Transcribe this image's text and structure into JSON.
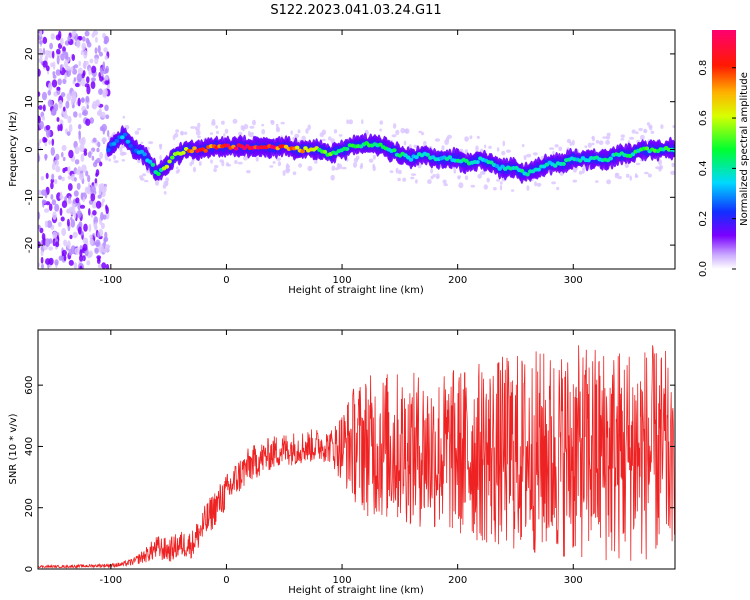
{
  "title": "S122.2023.041.03.24.G11",
  "colors": {
    "snr_line": "#ee2222",
    "scatter_dots": "#7a00ff",
    "axis": "#000000"
  },
  "chart_data": [
    {
      "type": "heatmap",
      "title": "S122.2023.041.03.24.G11",
      "xlabel": "Height of straight line (km)",
      "ylabel": "Frequency (Hz)",
      "xlim": [
        -163,
        388
      ],
      "ylim": [
        -25,
        25
      ],
      "xticks": [
        -100,
        0,
        100,
        200,
        300
      ],
      "xtick_labels": [
        "-100",
        "0",
        "100",
        "200",
        "300"
      ],
      "yticks": [
        -20,
        -10,
        0,
        10,
        20
      ],
      "ytick_labels": [
        "-20",
        "-10",
        "0",
        "10",
        "20"
      ],
      "colorbar": {
        "label": "Normalized spectral amplitude",
        "range": [
          0,
          0.95
        ],
        "ticks": [
          0.0,
          0.2,
          0.4,
          0.6,
          0.8
        ],
        "tick_labels": [
          "0.0",
          "0.2",
          "0.4",
          "0.6",
          "0.8"
        ],
        "colormap": "rainbow (white-violet-blue-cyan-green-yellow-red-magenta)"
      },
      "noise_region_x": [
        -163,
        -102
      ],
      "ridge": {
        "x": [
          -102,
          -95,
          -88,
          -80,
          -72,
          -65,
          -60,
          -55,
          -50,
          -45,
          -40,
          -35,
          -30,
          -20,
          -10,
          0,
          10,
          20,
          30,
          40,
          50,
          60,
          70,
          80,
          90,
          100,
          110,
          120,
          130,
          140,
          150,
          160,
          170,
          180,
          190,
          200,
          210,
          220,
          230,
          240,
          250,
          260,
          270,
          280,
          290,
          300,
          310,
          320,
          330,
          340,
          350,
          360,
          370,
          380,
          388
        ],
        "freq": [
          0,
          2,
          3,
          0,
          -1,
          -3,
          -5,
          -4,
          -3,
          -1,
          -1,
          0,
          0,
          0,
          0.5,
          0.5,
          0.5,
          0.5,
          0.5,
          0.5,
          0.5,
          0,
          0,
          0,
          -1,
          0,
          1,
          1,
          1,
          0,
          -1,
          -2,
          -1,
          -2,
          -2,
          -2,
          -3,
          -2,
          -3,
          -4,
          -4,
          -5,
          -4,
          -3,
          -3,
          -2,
          -2,
          -2,
          -2,
          -1,
          -1,
          0,
          0,
          0,
          0
        ],
        "amplitude": [
          0.3,
          0.35,
          0.35,
          0.3,
          0.35,
          0.45,
          0.5,
          0.55,
          0.6,
          0.7,
          0.75,
          0.8,
          0.85,
          0.9,
          0.9,
          0.9,
          0.95,
          0.95,
          0.95,
          0.9,
          0.9,
          0.8,
          0.7,
          0.6,
          0.55,
          0.55,
          0.5,
          0.5,
          0.5,
          0.45,
          0.45,
          0.4,
          0.4,
          0.4,
          0.4,
          0.45,
          0.45,
          0.4,
          0.4,
          0.4,
          0.45,
          0.4,
          0.4,
          0.4,
          0.4,
          0.4,
          0.4,
          0.45,
          0.45,
          0.45,
          0.45,
          0.5,
          0.5,
          0.5,
          0.5
        ]
      }
    },
    {
      "type": "line",
      "xlabel": "Height of straight line (km)",
      "ylabel": "SNR (10 * v/v)",
      "xlim": [
        -163,
        388
      ],
      "ylim": [
        0,
        780
      ],
      "xticks": [
        -100,
        0,
        100,
        200,
        300
      ],
      "xtick_labels": [
        "-100",
        "0",
        "100",
        "200",
        "300"
      ],
      "yticks": [
        0,
        200,
        400,
        600
      ],
      "ytick_labels": [
        "0",
        "200",
        "400",
        "600"
      ],
      "series": [
        {
          "x": [
            -163,
            -140,
            -120,
            -100,
            -90,
            -80,
            -70,
            -60,
            -50,
            -40,
            -30,
            -20,
            -10,
            0,
            10,
            20,
            30,
            40,
            50,
            60,
            70,
            80,
            90,
            100,
            110,
            120,
            130,
            140,
            150,
            160,
            170,
            180,
            190,
            200,
            210,
            220,
            230,
            240,
            250,
            260,
            270,
            280,
            290,
            300,
            310,
            320,
            330,
            340,
            350,
            360,
            370,
            380,
            388
          ],
          "mean": [
            8,
            8,
            10,
            12,
            15,
            25,
            45,
            70,
            60,
            80,
            80,
            140,
            200,
            250,
            300,
            340,
            360,
            380,
            390,
            395,
            400,
            405,
            400,
            400,
            410,
            405,
            400,
            400,
            395,
            390,
            390,
            380,
            380,
            380,
            380,
            380,
            375,
            380,
            380,
            380,
            380,
            375,
            380,
            380,
            380,
            380,
            375,
            375,
            380,
            380,
            380,
            375,
            300
          ],
          "spread": [
            4,
            4,
            5,
            6,
            8,
            12,
            25,
            40,
            40,
            45,
            45,
            60,
            60,
            60,
            60,
            60,
            55,
            55,
            55,
            55,
            55,
            55,
            55,
            120,
            190,
            230,
            240,
            250,
            250,
            250,
            260,
            260,
            270,
            280,
            290,
            300,
            310,
            320,
            330,
            330,
            340,
            340,
            340,
            350,
            350,
            360,
            360,
            360,
            360,
            360,
            350,
            340,
            200
          ]
        }
      ]
    }
  ]
}
